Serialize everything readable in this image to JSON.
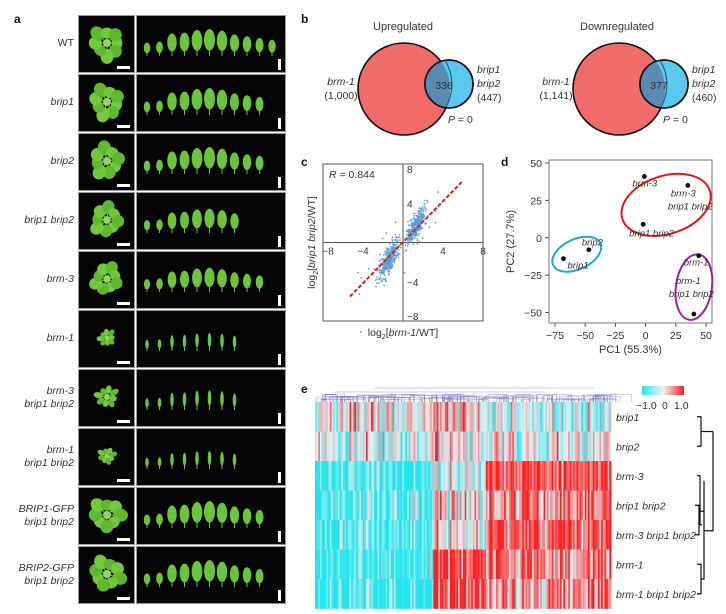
{
  "panels": {
    "a": {
      "letter": "a",
      "rows": [
        {
          "line1": "WT",
          "line2": "",
          "italic": false,
          "rosette_scale": 1.0,
          "leaf_count": 11,
          "leaf_scale": 1.0
        },
        {
          "line1": "brip1",
          "line2": "",
          "italic": true,
          "rosette_scale": 1.0,
          "leaf_count": 10,
          "leaf_scale": 1.0
        },
        {
          "line1": "brip2",
          "line2": "",
          "italic": true,
          "rosette_scale": 1.0,
          "leaf_count": 10,
          "leaf_scale": 1.0
        },
        {
          "line1": "brip1 brip2",
          "line2": "",
          "italic": true,
          "rosette_scale": 0.95,
          "leaf_count": 8,
          "leaf_scale": 0.85
        },
        {
          "line1": "brm-3",
          "line2": "",
          "italic": true,
          "rosette_scale": 0.9,
          "leaf_count": 10,
          "leaf_scale": 0.85
        },
        {
          "line1": "brm-1",
          "line2": "",
          "italic": true,
          "rosette_scale": 0.5,
          "leaf_count": 8,
          "leaf_scale": 0.5
        },
        {
          "line1": "brm-3",
          "line2": "brip1 brip2",
          "italic": true,
          "rosette_scale": 0.65,
          "leaf_count": 8,
          "leaf_scale": 0.6
        },
        {
          "line1": "brm-1",
          "line2": "brip1 brip2",
          "italic": true,
          "rosette_scale": 0.5,
          "leaf_count": 8,
          "leaf_scale": 0.5
        },
        {
          "line1": "BRIP1-GFP",
          "line2": "brip1 brip2",
          "italic": true,
          "rosette_scale": 1.0,
          "leaf_count": 10,
          "leaf_scale": 1.0
        },
        {
          "line1": "BRIP2-GFP",
          "line2": "brip1 brip2",
          "italic": true,
          "rosette_scale": 1.0,
          "leaf_count": 10,
          "leaf_scale": 1.0
        }
      ]
    },
    "b": {
      "letter": "b",
      "venns": [
        {
          "title": "Upregulated",
          "left_label": "brm-1",
          "left_count": "(1,000)",
          "overlap": "336",
          "right_label_1": "brip1",
          "right_label_2": "brip2",
          "right_count": "(447)",
          "pvalue": "P = 0"
        },
        {
          "title": "Downregulated",
          "left_label": "brm-1",
          "left_count": "(1,141)",
          "overlap": "377",
          "right_label_1": "brip1",
          "right_label_2": "brip2",
          "right_count": "(460)",
          "pvalue": "P = 0"
        }
      ],
      "colors": {
        "left": "#f26b6b",
        "right": "#5bc8f0",
        "overlap": "#5b8ab5"
      }
    },
    "c": {
      "letter": "c",
      "annotation": "R = 0.844",
      "xlabel": "log2[brm-1/WT]",
      "ylabel": "log2[brip1 brip2/WT]",
      "ticks": [
        "-8",
        "-4",
        "4",
        "8"
      ],
      "colors": {
        "points": "#5b9bd5",
        "fit": "#e02020"
      }
    },
    "d": {
      "letter": "d",
      "xlabel": "PC1 (55.3%)",
      "ylabel": "PC2 (27.7%)",
      "xticks": [
        "-75",
        "-50",
        "-25",
        "0",
        "25",
        "50"
      ],
      "yticks": [
        "50",
        "25",
        "0",
        "-25",
        "-50"
      ]
    },
    "e": {
      "letter": "e",
      "legend": {
        "min": "-1.0",
        "mid": "0",
        "max": "1.0",
        "low_color": "#22e6ee",
        "high_color": "#ff2020"
      },
      "rows": [
        "brip1",
        "brip2",
        "brm-3",
        "brip1 brip2",
        "brm-3 brip1 brip2",
        "brm-1",
        "brm-1 brip1 brip2"
      ]
    }
  },
  "chart_data": [
    {
      "type": "scatter",
      "title": "",
      "xlabel": "log2[brm-1/WT]",
      "ylabel": "log2[brip1 brip2/WT]",
      "xlim": [
        -8,
        8
      ],
      "ylim": [
        -8,
        8
      ],
      "annotation": "R = 0.844",
      "fit_line": {
        "x": [
          -5.3,
          6.0
        ],
        "y": [
          -5.5,
          6.3
        ]
      },
      "clusters": [
        {
          "name": "upregulated",
          "center": [
            1.3,
            1.7
          ],
          "spread": [
            0.7,
            1.0
          ],
          "n": 336
        },
        {
          "name": "downregulated",
          "center": [
            -1.4,
            -1.8
          ],
          "spread": [
            0.8,
            1.1
          ],
          "n": 377
        }
      ],
      "grid": false
    },
    {
      "type": "scatter",
      "title": "",
      "xlabel": "PC1 (55.3%)",
      "ylabel": "PC2 (27.7%)",
      "xlim": [
        -80,
        55
      ],
      "ylim": [
        -57,
        52
      ],
      "grid": false,
      "points": [
        {
          "label": "brip1",
          "x": -68,
          "y": -14
        },
        {
          "label": "brip2",
          "x": -47,
          "y": -8
        },
        {
          "label": "brm-3",
          "x": -1,
          "y": 41
        },
        {
          "label": "brm-3 brip1 brip2",
          "x": 35,
          "y": 35
        },
        {
          "label": "brip1 brip2",
          "x": -2,
          "y": 9
        },
        {
          "label": "brm-1",
          "x": 44,
          "y": -12
        },
        {
          "label": "brm-1 brip1 brip2",
          "x": 40,
          "y": -51
        }
      ],
      "groups": [
        {
          "name": "brip",
          "color": "#1ea6d8",
          "members": [
            "brip1",
            "brip2"
          ]
        },
        {
          "name": "brm-3",
          "color": "#e01818",
          "members": [
            "brm-3",
            "brm-3 brip1 brip2",
            "brip1 brip2"
          ]
        },
        {
          "name": "brm-1",
          "color": "#a020a8",
          "members": [
            "brm-1",
            "brm-1 brip1 brip2"
          ]
        }
      ]
    },
    {
      "type": "heatmap",
      "title": "",
      "rows": [
        "brip1",
        "brip2",
        "brm-3",
        "brip1 brip2",
        "brm-3 brip1 brip2",
        "brm-1",
        "brm-1 brip1 brip2"
      ],
      "value_range": [
        -1.0,
        1.0
      ],
      "column_blocks": [
        {
          "name": "block1",
          "fraction": 0.4,
          "row_means": [
            0.05,
            -0.2,
            -0.75,
            -0.75,
            -0.85,
            -0.85,
            -0.9
          ]
        },
        {
          "name": "block2",
          "fraction": 0.18,
          "row_means": [
            0.0,
            0.0,
            -0.3,
            0.0,
            0.0,
            0.75,
            0.75
          ]
        },
        {
          "name": "block3",
          "fraction": 0.42,
          "row_means": [
            -0.2,
            0.0,
            0.85,
            0.55,
            0.85,
            0.6,
            0.55
          ]
        }
      ]
    }
  ]
}
